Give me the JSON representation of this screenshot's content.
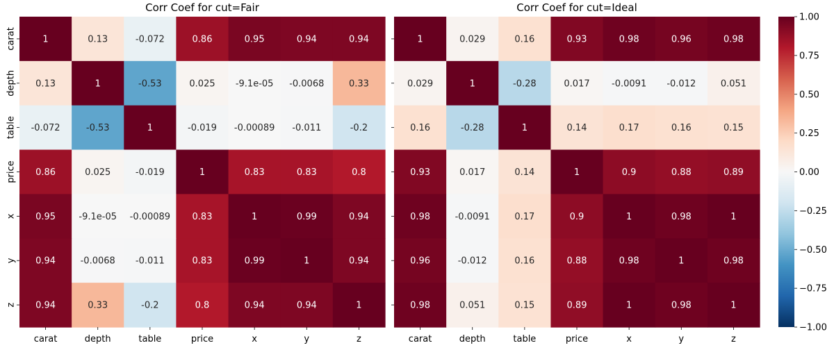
{
  "chart_data": [
    {
      "type": "heatmap",
      "title": "Corr Coef for cut=Fair",
      "x_categories": [
        "carat",
        "depth",
        "table",
        "price",
        "x",
        "y",
        "z"
      ],
      "y_categories": [
        "carat",
        "depth",
        "table",
        "price",
        "x",
        "y",
        "z"
      ],
      "values": [
        [
          1,
          0.13,
          -0.072,
          0.86,
          0.95,
          0.94,
          0.94
        ],
        [
          0.13,
          1,
          -0.53,
          0.025,
          -9.1e-05,
          -0.0068,
          0.33
        ],
        [
          -0.072,
          -0.53,
          1,
          -0.019,
          -0.00089,
          -0.011,
          -0.2
        ],
        [
          0.86,
          0.025,
          -0.019,
          1,
          0.83,
          0.83,
          0.8
        ],
        [
          0.95,
          -9.1e-05,
          -0.00089,
          0.83,
          1,
          0.99,
          0.94
        ],
        [
          0.94,
          -0.0068,
          -0.011,
          0.83,
          0.99,
          1,
          0.94
        ],
        [
          0.94,
          0.33,
          -0.2,
          0.8,
          0.94,
          0.94,
          1
        ]
      ],
      "labels": [
        [
          "1",
          "0.13",
          "-0.072",
          "0.86",
          "0.95",
          "0.94",
          "0.94"
        ],
        [
          "0.13",
          "1",
          "-0.53",
          "0.025",
          "-9.1e-05",
          "-0.0068",
          "0.33"
        ],
        [
          "-0.072",
          "-0.53",
          "1",
          "-0.019",
          "-0.00089",
          "-0.011",
          "-0.2"
        ],
        [
          "0.86",
          "0.025",
          "-0.019",
          "1",
          "0.83",
          "0.83",
          "0.8"
        ],
        [
          "0.95",
          "-9.1e-05",
          "-0.00089",
          "0.83",
          "1",
          "0.99",
          "0.94"
        ],
        [
          "0.94",
          "-0.0068",
          "-0.011",
          "0.83",
          "0.99",
          "1",
          "0.94"
        ],
        [
          "0.94",
          "0.33",
          "-0.2",
          "0.8",
          "0.94",
          "0.94",
          "1"
        ]
      ]
    },
    {
      "type": "heatmap",
      "title": "Corr Coef for cut=Ideal",
      "x_categories": [
        "carat",
        "depth",
        "table",
        "price",
        "x",
        "y",
        "z"
      ],
      "y_categories": [],
      "values": [
        [
          1,
          0.029,
          0.16,
          0.93,
          0.98,
          0.96,
          0.98
        ],
        [
          0.029,
          1,
          -0.28,
          0.017,
          -0.0091,
          -0.012,
          0.051
        ],
        [
          0.16,
          -0.28,
          1,
          0.14,
          0.17,
          0.16,
          0.15
        ],
        [
          0.93,
          0.017,
          0.14,
          1,
          0.9,
          0.88,
          0.89
        ],
        [
          0.98,
          -0.0091,
          0.17,
          0.9,
          1,
          0.98,
          1
        ],
        [
          0.96,
          -0.012,
          0.16,
          0.88,
          0.98,
          1,
          0.98
        ],
        [
          0.98,
          0.051,
          0.15,
          0.89,
          1,
          0.98,
          1
        ]
      ],
      "labels": [
        [
          "1",
          "0.029",
          "0.16",
          "0.93",
          "0.98",
          "0.96",
          "0.98"
        ],
        [
          "0.029",
          "1",
          "-0.28",
          "0.017",
          "-0.0091",
          "-0.012",
          "0.051"
        ],
        [
          "0.16",
          "-0.28",
          "1",
          "0.14",
          "0.17",
          "0.16",
          "0.15"
        ],
        [
          "0.93",
          "0.017",
          "0.14",
          "1",
          "0.9",
          "0.88",
          "0.89"
        ],
        [
          "0.98",
          "-0.0091",
          "0.17",
          "0.9",
          "1",
          "0.98",
          "1"
        ],
        [
          "0.96",
          "-0.012",
          "0.16",
          "0.88",
          "0.98",
          "1",
          "0.98"
        ],
        [
          "0.98",
          "0.051",
          "0.15",
          "0.89",
          "1",
          "0.98",
          "1"
        ]
      ]
    }
  ],
  "colorbar": {
    "colormap": "RdBu_r",
    "range": [
      -1.0,
      1.0
    ],
    "ticks": [
      1.0,
      0.75,
      0.5,
      0.25,
      0.0,
      -0.25,
      -0.5,
      -0.75,
      -1.0
    ],
    "tick_labels": [
      "1.00",
      "0.75",
      "0.50",
      "0.25",
      "0.00",
      "−0.25",
      "−0.50",
      "−0.75",
      "−1.00"
    ]
  }
}
